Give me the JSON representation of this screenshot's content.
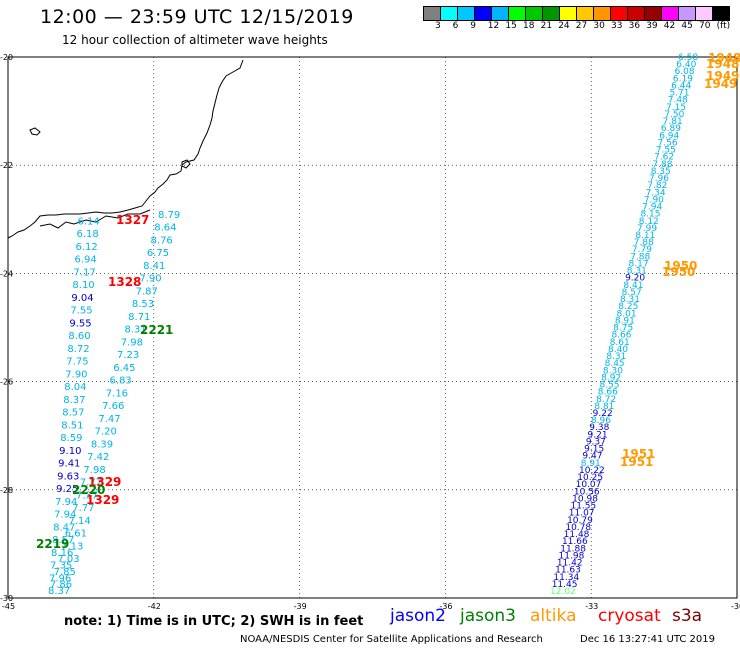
{
  "header": {
    "title": "12:00 — 23:59 UTC 12/15/2019",
    "subtitle": "12 hour collection of altimeter wave heights"
  },
  "color_scale": {
    "colors": [
      "#808080",
      "#00ffff",
      "#00c8ff",
      "#0000ff",
      "#00b4ff",
      "#00ff00",
      "#00c800",
      "#009600",
      "#ffff00",
      "#ffc800",
      "#ff9600",
      "#ff0000",
      "#c80000",
      "#960000",
      "#ff00ff",
      "#c896ff",
      "#ffc8ff",
      "#000000"
    ],
    "labels": [
      "3",
      "6",
      "9",
      "12",
      "15",
      "18",
      "21",
      "24",
      "27",
      "30",
      "33",
      "36",
      "39",
      "42",
      "45",
      "70",
      "(ft)"
    ]
  },
  "axes": {
    "x_labels": [
      "-45",
      "-42",
      "-39",
      "-36",
      "-33",
      "-30"
    ],
    "y_labels": [
      "-20",
      "-22",
      "-24",
      "-26",
      "-28",
      "-30"
    ]
  },
  "tracks": {
    "left_values": [
      "8.79",
      "6.14",
      "8.64",
      "6.18",
      "8.76",
      "6.12",
      "6.75",
      "6.94",
      "8.41",
      "7.17",
      "7.90",
      "8.10",
      "7.87",
      "9.04",
      "8.53",
      "7.55",
      "8.71",
      "9.55",
      "8.31",
      "8.60",
      "7.98",
      "8.72",
      "7.23",
      "7.75",
      "6.45",
      "7.90",
      "6.83",
      "8.04",
      "7.16",
      "8.37",
      "7.66",
      "8.57",
      "7.47",
      "8.51",
      "7.20",
      "8.59",
      "8.39",
      "9.10",
      "7.42",
      "9.41",
      "7.98",
      "9.63",
      "7.77",
      "9.25",
      "7.37",
      "7.94",
      "7.77",
      "7.94",
      "7.14",
      "8.47",
      "6.61",
      "8.57",
      "7.13",
      "8.16",
      "7.03",
      "7.35",
      "7.85",
      "7.96",
      "7.86",
      "8.37"
    ],
    "left_times": [
      {
        "text": "1327",
        "color": "#ff0000"
      },
      {
        "text": "1328",
        "color": "#ff0000"
      },
      {
        "text": "2221",
        "color": "#008000"
      },
      {
        "text": "1329",
        "color": "#ff0000"
      },
      {
        "text": "2220",
        "color": "#008000"
      },
      {
        "text": "1329",
        "color": "#ff0000"
      },
      {
        "text": "2219",
        "color": "#008000"
      }
    ],
    "right_values": [
      "6.58",
      "6.40",
      "6.08",
      "6.19",
      "6.44",
      "5.71",
      "7.48",
      "7.15",
      "7.50",
      "7.81",
      "6.89",
      "6.94",
      "7.56",
      "7.55",
      "7.62",
      "7.88",
      "8.35",
      "7.96",
      "7.82",
      "7.34",
      "7.90",
      "7.94",
      "8.15",
      "8.12",
      "7.99",
      "8.11",
      "7.88",
      "7.79",
      "7.88",
      "8.17",
      "8.31",
      "9.20",
      "8.41",
      "8.57",
      "8.31",
      "8.25",
      "8.01",
      "8.91",
      "8.75",
      "8.66",
      "8.61",
      "8.40",
      "8.31",
      "8.45",
      "8.30",
      "8.92",
      "8.55",
      "8.66",
      "8.72",
      "8.81",
      "9.22",
      "8.96",
      "9.38",
      "9.21",
      "9.37",
      "9.15",
      "9.47",
      "8.91",
      "10.22",
      "10.25",
      "10.07",
      "10.56",
      "10.98",
      "11.55",
      "11.07",
      "10.79",
      "10.78",
      "11.48",
      "11.66",
      "11.88",
      "11.98",
      "11.42",
      "11.63",
      "11.34",
      "11.45",
      "12.02"
    ],
    "right_times": [
      {
        "text": "1948",
        "color": "#ff9900"
      },
      {
        "text": "1948",
        "color": "#ff9900"
      },
      {
        "text": "1949",
        "color": "#ff9900"
      },
      {
        "text": "1949",
        "color": "#ff9900"
      },
      {
        "text": "1950",
        "color": "#ff9900"
      },
      {
        "text": "1950",
        "color": "#ff9900"
      },
      {
        "text": "1951",
        "color": "#ff9900"
      },
      {
        "text": "1951",
        "color": "#ff9900"
      }
    ]
  },
  "footer": {
    "note": "note:  1) Time is in UTC; 2) SWH is in feet",
    "legend": [
      {
        "name": "jason2",
        "color": "#0000ff"
      },
      {
        "name": "jason3",
        "color": "#008000"
      },
      {
        "name": "altika",
        "color": "#ff9900"
      },
      {
        "name": "cryosat",
        "color": "#ff0000"
      },
      {
        "name": "s3a",
        "color": "#800000"
      }
    ],
    "credit": "NOAA/NESDIS Center for Satellite Applications and Research",
    "stamp": "Dec 16 13:27:41 UTC 2019"
  }
}
